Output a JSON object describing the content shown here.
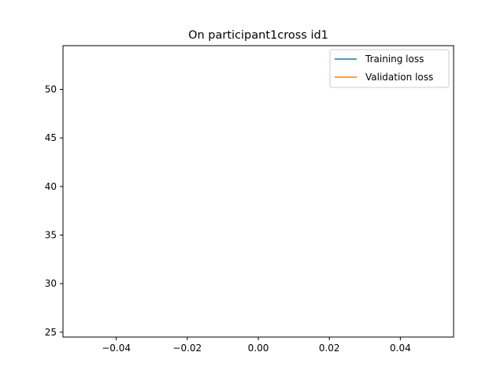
{
  "chart_data": {
    "type": "line",
    "title": "On participant1cross id1",
    "xlabel": "",
    "ylabel": "",
    "xlim": [
      -0.055,
      0.055
    ],
    "ylim": [
      24.5,
      54.5
    ],
    "xticks": [
      -0.04,
      -0.02,
      0.0,
      0.02,
      0.04
    ],
    "xtick_labels": [
      "−0.04",
      "−0.02",
      "0.00",
      "0.02",
      "0.04"
    ],
    "yticks": [
      25,
      30,
      35,
      40,
      45,
      50
    ],
    "ytick_labels": [
      "25",
      "30",
      "35",
      "40",
      "45",
      "50"
    ],
    "grid": false,
    "legend_position": "upper right",
    "series": [
      {
        "name": "Training loss",
        "color": "#1f77b4",
        "x": [
          0
        ],
        "y": [
          null
        ]
      },
      {
        "name": "Validation loss",
        "color": "#ff7f0e",
        "x": [
          0
        ],
        "y": [
          null
        ]
      }
    ]
  }
}
